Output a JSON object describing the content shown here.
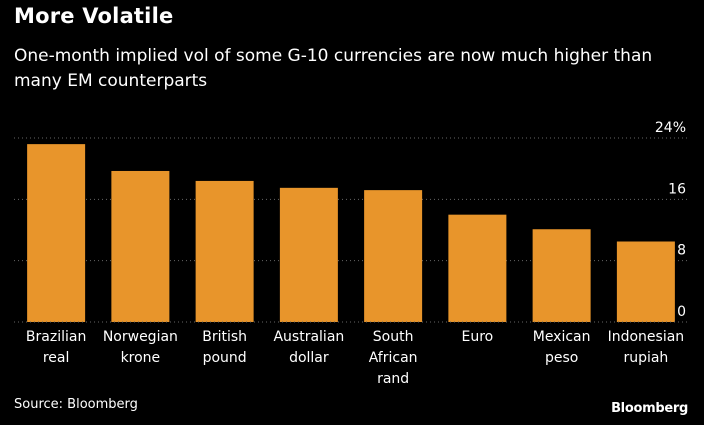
{
  "colors": {
    "background": "#000000",
    "bar": "#E8952B",
    "text": "#ffffff",
    "grid": "#666666"
  },
  "footer": {
    "source": "Source: Bloomberg",
    "brand": "Bloomberg"
  },
  "chart_data": {
    "type": "bar",
    "title": "More Volatile",
    "subtitle": "One-month implied vol of some G-10 currencies are now much higher than many EM counterparts",
    "xlabel": "",
    "ylabel": "",
    "ylim": [
      0,
      24
    ],
    "yticks": [
      {
        "value": 24,
        "label": "24%"
      },
      {
        "value": 16,
        "label": "16"
      },
      {
        "value": 8,
        "label": "8"
      },
      {
        "value": 0,
        "label": "0"
      }
    ],
    "grid": true,
    "legend": "none",
    "categories": [
      [
        "Brazilian",
        "real"
      ],
      [
        "Norwegian",
        "krone"
      ],
      [
        "British",
        "pound"
      ],
      [
        "Australian",
        "dollar"
      ],
      [
        "South",
        "African",
        "rand"
      ],
      [
        "Euro"
      ],
      [
        "Mexican",
        "peso"
      ],
      [
        "Indonesian",
        "rupiah"
      ]
    ],
    "values": [
      23.2,
      19.7,
      18.4,
      17.5,
      17.2,
      14.0,
      12.1,
      10.5
    ]
  }
}
